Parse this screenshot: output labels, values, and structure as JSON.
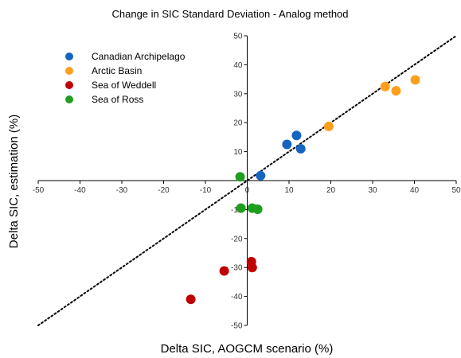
{
  "chart_data": {
    "type": "scatter",
    "title": "Change in SIC Standard Deviation - Analog method",
    "xlabel": "Delta SIC, AOGCM scenario (%)",
    "ylabel": "Delta SIC, estimation (%)",
    "xlim": [
      -50,
      50
    ],
    "ylim": [
      -50,
      50
    ],
    "xticks": [
      -50,
      -40,
      -30,
      -20,
      -10,
      0,
      10,
      20,
      30,
      40,
      50
    ],
    "yticks": [
      -50,
      -40,
      -30,
      -20,
      -10,
      10,
      20,
      30,
      40,
      50
    ],
    "grid": false,
    "legend_position": "top-left",
    "reference_line": {
      "style": "dotted",
      "color": "#000000",
      "points": [
        [
          -50,
          -50
        ],
        [
          50,
          50
        ]
      ]
    },
    "series": [
      {
        "name": "Canadian Archipelago",
        "color": "#1565c0",
        "points": [
          [
            3.2,
            1.7
          ],
          [
            9.5,
            12.5
          ],
          [
            11.8,
            15.6
          ],
          [
            12.8,
            11.0
          ]
        ]
      },
      {
        "name": "Arctic Basin",
        "color": "#ff9f1c",
        "points": [
          [
            19.5,
            18.7
          ],
          [
            33.0,
            32.5
          ],
          [
            35.6,
            31.0
          ],
          [
            40.2,
            34.8
          ]
        ]
      },
      {
        "name": "Sea of Weddell",
        "color": "#c00000",
        "points": [
          [
            -13.5,
            -41.0
          ],
          [
            -5.5,
            -31.2
          ],
          [
            1.0,
            -28.0
          ],
          [
            1.2,
            -30.0
          ]
        ]
      },
      {
        "name": "Sea of Ross",
        "color": "#1f9e1f",
        "points": [
          [
            -1.7,
            1.3
          ],
          [
            -1.5,
            -9.5
          ],
          [
            1.2,
            -9.5
          ],
          [
            2.5,
            -9.9
          ]
        ]
      }
    ]
  }
}
